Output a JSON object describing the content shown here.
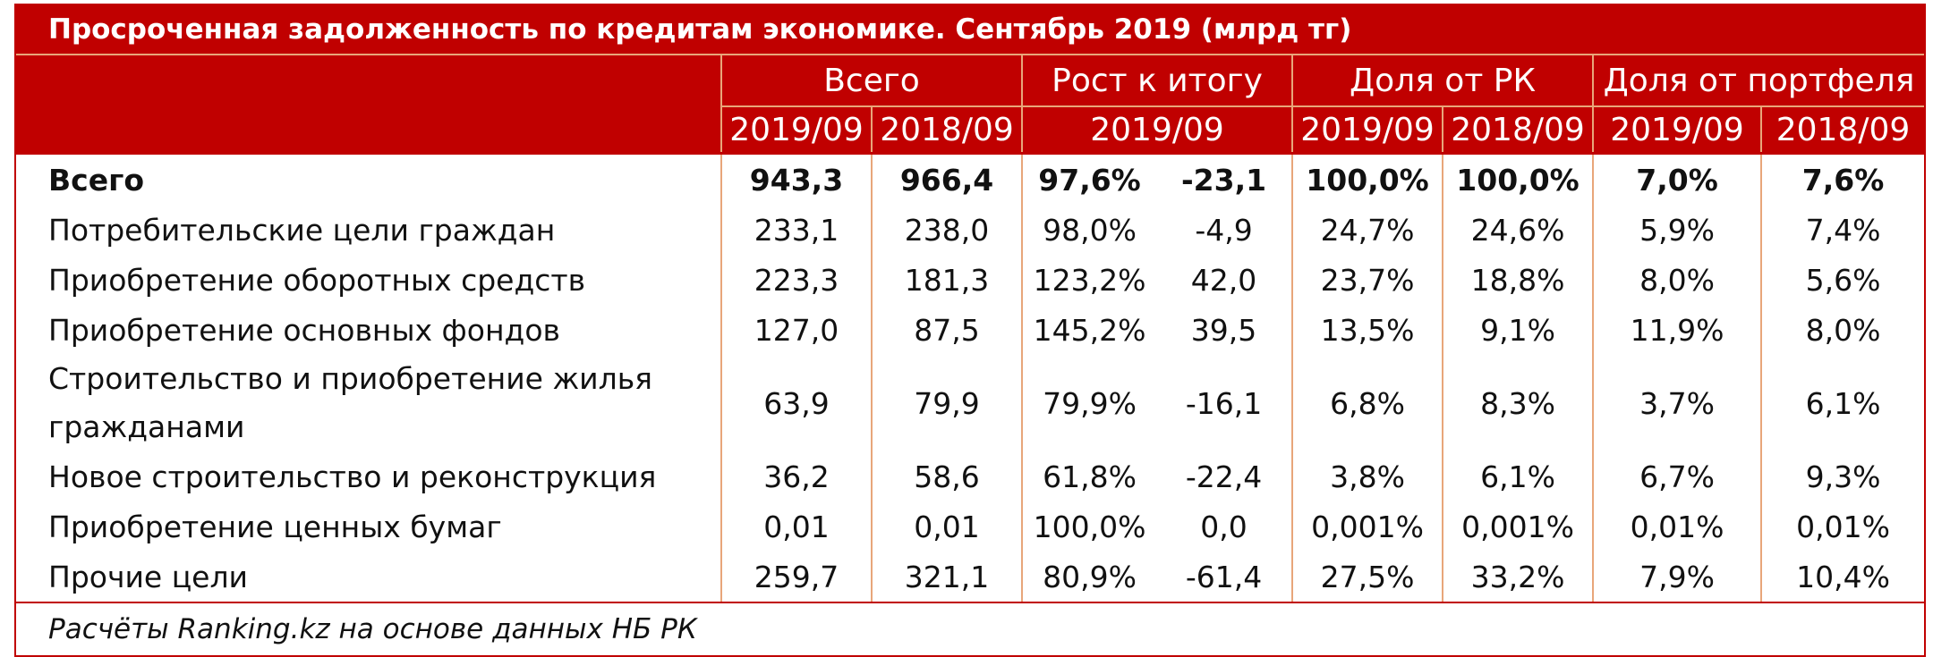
{
  "title": "Просроченная задолженность по кредитам экономике. Сентябрь 2019 (млрд тг)",
  "header": {
    "groups": [
      "Всего",
      "Рост к итогу",
      "Доля от РК",
      "Доля от портфеля"
    ],
    "sub": [
      "2019/09",
      "2018/09",
      "2019/09",
      "2019/09",
      "2018/09",
      "2019/09",
      "2018/09"
    ]
  },
  "rows": [
    {
      "label": "Всего",
      "cells": [
        "943,3",
        "966,4",
        "97,6%",
        "-23,1",
        "100,0%",
        "100,0%",
        "7,0%",
        "7,6%"
      ]
    },
    {
      "label": "Потребительские цели граждан",
      "cells": [
        "233,1",
        "238,0",
        "98,0%",
        "-4,9",
        "24,7%",
        "24,6%",
        "5,9%",
        "7,4%"
      ]
    },
    {
      "label": "Приобретение оборотных средств",
      "cells": [
        "223,3",
        "181,3",
        "123,2%",
        "42,0",
        "23,7%",
        "18,8%",
        "8,0%",
        "5,6%"
      ]
    },
    {
      "label": "Приобретение основных фондов",
      "cells": [
        "127,0",
        "87,5",
        "145,2%",
        "39,5",
        "13,5%",
        "9,1%",
        "11,9%",
        "8,0%"
      ]
    },
    {
      "label": "Строительство и приобретение жилья гражданами",
      "cells": [
        "63,9",
        "79,9",
        "79,9%",
        "-16,1",
        "6,8%",
        "8,3%",
        "3,7%",
        "6,1%"
      ]
    },
    {
      "label": "Новое строительство и реконструкция",
      "cells": [
        "36,2",
        "58,6",
        "61,8%",
        "-22,4",
        "3,8%",
        "6,1%",
        "6,7%",
        "9,3%"
      ]
    },
    {
      "label": "Приобретение ценных бумаг",
      "cells": [
        "0,01",
        "0,01",
        "100,0%",
        "0,0",
        "0,001%",
        "0,001%",
        "0,01%",
        "0,01%"
      ]
    },
    {
      "label": "Прочие цели",
      "cells": [
        "259,7",
        "321,1",
        "80,9%",
        "-61,4",
        "27,5%",
        "33,2%",
        "7,9%",
        "10,4%"
      ]
    }
  ],
  "source": "Расчёты Ranking.kz на основе данных НБ РК",
  "colors": {
    "header_bg": "#c00000",
    "header_text": "#ffffff",
    "grid": "#e8a67a"
  }
}
